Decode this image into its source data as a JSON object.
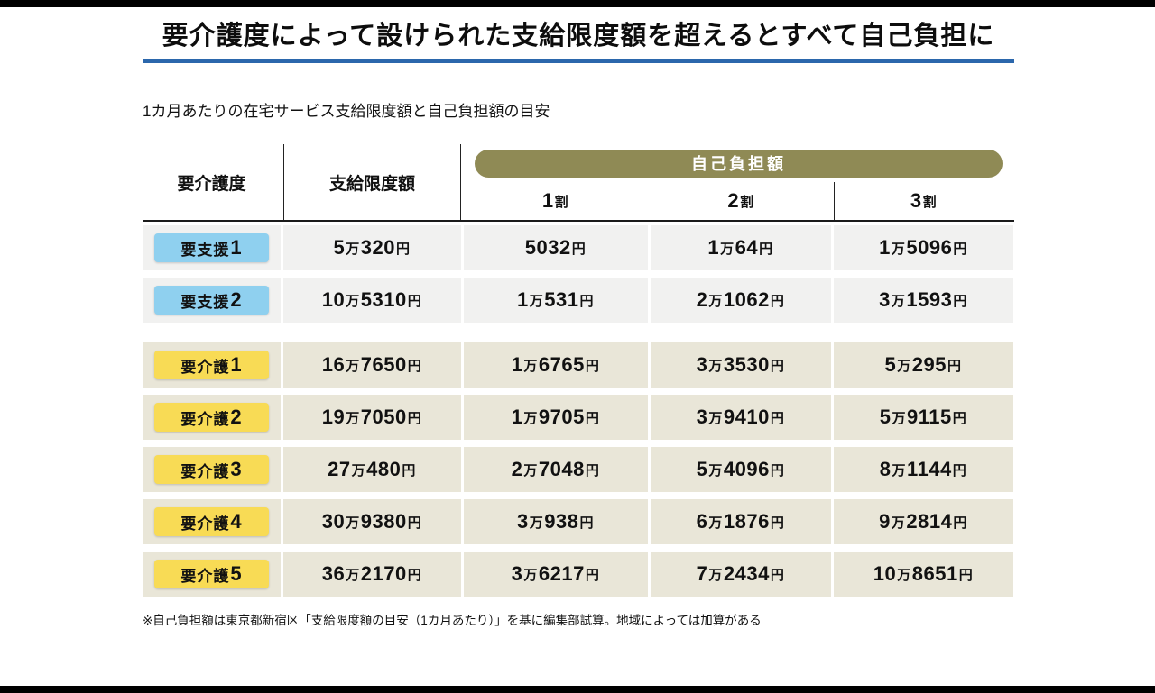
{
  "page": {
    "title": "要介護度によって設けられた支給限度額を超えるとすべて自己負担に",
    "subtitle": "1カ月あたりの在宅サービス支給限度額と自己負担額の目安",
    "footnote": "※自己負担額は東京都新宿区「支給限度額の目安（1カ月あたり）」を基に編集部試算。地域によっては加算がある"
  },
  "table": {
    "col_headers": {
      "care_level": "要介護度",
      "limit": "支給限度額",
      "copay_banner": "自己負担額",
      "copay_rates": [
        "1割",
        "2割",
        "3割"
      ]
    },
    "groups": [
      {
        "name": "要支援",
        "badge_color": "#8fd0ef",
        "rows": [
          {
            "label": "要支援1",
            "limit": "5万320円",
            "copay": [
              "5032円",
              "1万64円",
              "1万5096円"
            ]
          },
          {
            "label": "要支援2",
            "limit": "10万5310円",
            "copay": [
              "1万531円",
              "2万1062円",
              "3万1593円"
            ]
          }
        ]
      },
      {
        "name": "要介護",
        "badge_color": "#f8db55",
        "rows": [
          {
            "label": "要介護1",
            "limit": "16万7650円",
            "copay": [
              "1万6765円",
              "3万3530円",
              "5万295円"
            ]
          },
          {
            "label": "要介護2",
            "limit": "19万7050円",
            "copay": [
              "1万9705円",
              "3万9410円",
              "5万9115円"
            ]
          },
          {
            "label": "要介護3",
            "limit": "27万480円",
            "copay": [
              "2万7048円",
              "5万4096円",
              "8万1144円"
            ]
          },
          {
            "label": "要介護4",
            "limit": "30万9380円",
            "copay": [
              "3万938円",
              "6万1876円",
              "9万2814円"
            ]
          },
          {
            "label": "要介護5",
            "limit": "36万2170円",
            "copay": [
              "3万6217円",
              "7万2434円",
              "10万8651円"
            ]
          }
        ]
      }
    ]
  },
  "chart_data": {
    "type": "table",
    "title": "要介護度によって設けられた支給限度額を超えるとすべて自己負担に",
    "subtitle": "1カ月あたりの在宅サービス支給限度額と自己負担額の目安",
    "columns": [
      "要介護度",
      "支給限度額",
      "自己負担額 1割",
      "自己負担額 2割",
      "自己負担額 3割"
    ],
    "rows": [
      [
        "要支援1",
        "5万320円",
        "5032円",
        "1万64円",
        "1万5096円"
      ],
      [
        "要支援2",
        "10万5310円",
        "1万531円",
        "2万1062円",
        "3万1593円"
      ],
      [
        "要介護1",
        "16万7650円",
        "1万6765円",
        "3万3530円",
        "5万295円"
      ],
      [
        "要介護2",
        "19万7050円",
        "1万9705円",
        "3万9410円",
        "5万9115円"
      ],
      [
        "要介護3",
        "27万480円",
        "2万7048円",
        "5万4096円",
        "8万1144円"
      ],
      [
        "要介護4",
        "30万9380円",
        "3万938円",
        "6万1876円",
        "9万2814円"
      ],
      [
        "要介護5",
        "36万2170円",
        "3万6217円",
        "7万2434円",
        "10万8651円"
      ]
    ],
    "values_yen": [
      {
        "level": "要支援1",
        "limit": 50320,
        "copay_10pct": 5032,
        "copay_20pct": 10064,
        "copay_30pct": 15096
      },
      {
        "level": "要支援2",
        "limit": 105310,
        "copay_10pct": 10531,
        "copay_20pct": 21062,
        "copay_30pct": 31593
      },
      {
        "level": "要介護1",
        "limit": 167650,
        "copay_10pct": 16765,
        "copay_20pct": 33530,
        "copay_30pct": 50295
      },
      {
        "level": "要介護2",
        "limit": 197050,
        "copay_10pct": 19705,
        "copay_20pct": 39410,
        "copay_30pct": 59115
      },
      {
        "level": "要介護3",
        "limit": 270480,
        "copay_10pct": 27048,
        "copay_20pct": 54096,
        "copay_30pct": 81144
      },
      {
        "level": "要介護4",
        "limit": 309380,
        "copay_10pct": 30938,
        "copay_20pct": 61876,
        "copay_30pct": 92814
      },
      {
        "level": "要介護5",
        "limit": 362170,
        "copay_10pct": 36217,
        "copay_20pct": 72434,
        "copay_30pct": 108651
      }
    ],
    "footnote": "※自己負担額は東京都新宿区「支給限度額の目安（1カ月あたり）」を基に編集部試算。地域によっては加算がある"
  },
  "colors": {
    "accent_blue": "#2b67ac",
    "banner_olive": "#8f8a55",
    "badge_blue": "#8fd0ef",
    "badge_yellow": "#f8db55",
    "row_gray": "#f1f1f0",
    "row_beige": "#e9e6d8",
    "bar_black": "#000000"
  }
}
